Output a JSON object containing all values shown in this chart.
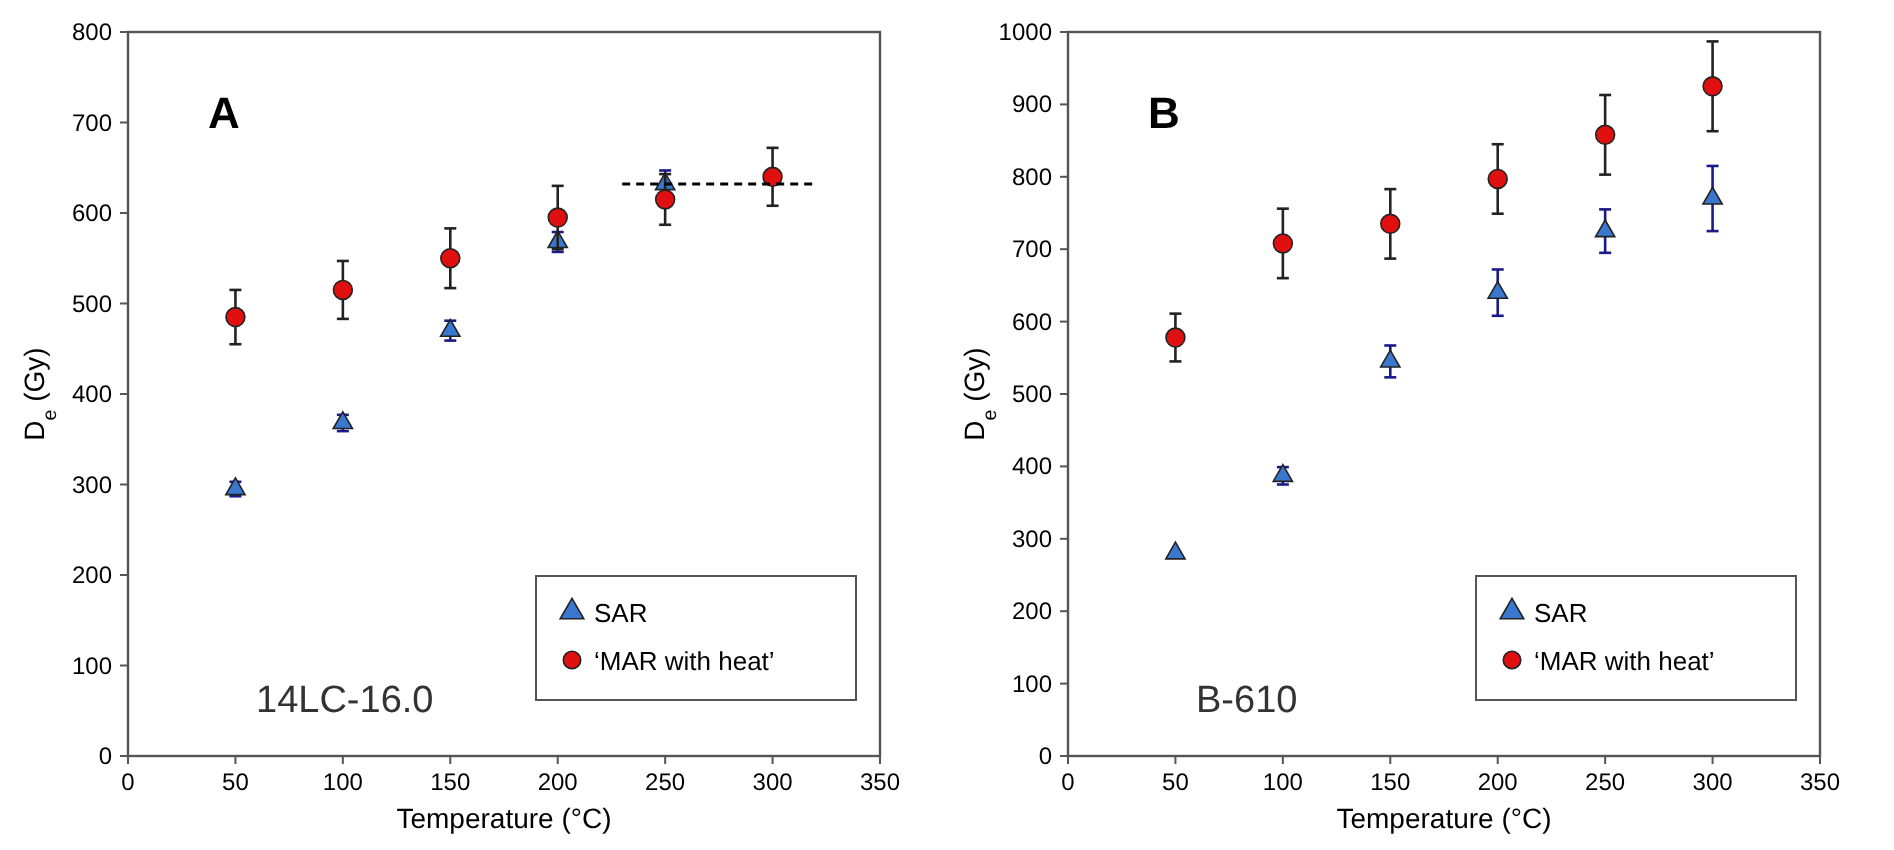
{
  "chart_data": [
    {
      "type": "scatter",
      "xlabel": "Temperature (°C)",
      "ylabel": "D$_{e}$ (Gy)",
      "annotations": [
        "A",
        "14LC-16.0"
      ],
      "xlim": [
        0,
        350
      ],
      "xticks": [
        0,
        50,
        100,
        150,
        200,
        250,
        300,
        350
      ],
      "ylim": [
        0,
        800
      ],
      "yticks": [
        0,
        100,
        200,
        300,
        400,
        500,
        600,
        700,
        800
      ],
      "grid": false,
      "legend": "bottom right",
      "series": [
        {
          "name": "SAR",
          "color": "#3a78d0",
          "marker": "triangle",
          "x": [
            50,
            100,
            150,
            200,
            250
          ],
          "values": [
            295,
            368,
            470,
            568,
            632
          ],
          "errors": [
            8,
            9,
            11,
            11,
            15
          ]
        },
        {
          "name": "‘MAR with heat’",
          "color": "#e01010",
          "marker": "circle",
          "x": [
            50,
            100,
            150,
            200,
            250,
            300
          ],
          "values": [
            485,
            515,
            550,
            595,
            615,
            640
          ],
          "errors": [
            30,
            32,
            33,
            35,
            28,
            32
          ]
        },
        {
          "type": "line",
          "color": "#000000",
          "marker": "none",
          "line_style": "dashed",
          "x": [
            230,
            320
          ],
          "values": [
            632,
            632
          ]
        }
      ]
    },
    {
      "type": "scatter",
      "xlabel": "Temperature (°C)",
      "ylabel": "D$_{e}$ (Gy)",
      "annotations": [
        "B",
        "B-610"
      ],
      "xlim": [
        0,
        350
      ],
      "xticks": [
        0,
        50,
        100,
        150,
        200,
        250,
        300,
        350
      ],
      "ylim": [
        0,
        1000
      ],
      "yticks": [
        0,
        100,
        200,
        300,
        400,
        500,
        600,
        700,
        800,
        900,
        1000
      ],
      "grid": false,
      "legend": "bottom right",
      "series": [
        {
          "name": "SAR",
          "color": "#3a78d0",
          "marker": "triangle",
          "x": [
            50,
            100,
            150,
            200,
            250,
            300
          ],
          "values": [
            280,
            387,
            545,
            640,
            725,
            770
          ],
          "errors": [
            null,
            12,
            22,
            32,
            30,
            45
          ]
        },
        {
          "name": "‘MAR with heat’",
          "color": "#e01010",
          "marker": "circle",
          "x": [
            50,
            100,
            150,
            200,
            250,
            300
          ],
          "values": [
            578,
            708,
            735,
            797,
            858,
            925
          ],
          "errors": [
            33,
            48,
            48,
            48,
            55,
            62
          ]
        }
      ]
    }
  ]
}
